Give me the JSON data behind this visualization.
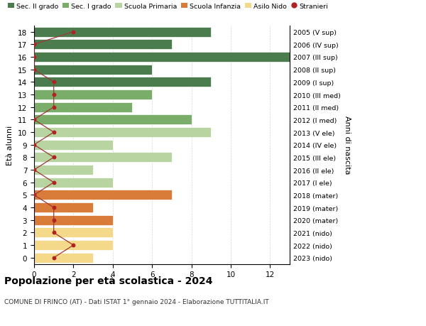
{
  "ages": [
    18,
    17,
    16,
    15,
    14,
    13,
    12,
    11,
    10,
    9,
    8,
    7,
    6,
    5,
    4,
    3,
    2,
    1,
    0
  ],
  "right_labels": [
    "2005 (V sup)",
    "2006 (IV sup)",
    "2007 (III sup)",
    "2008 (II sup)",
    "2009 (I sup)",
    "2010 (III med)",
    "2011 (II med)",
    "2012 (I med)",
    "2013 (V ele)",
    "2014 (IV ele)",
    "2015 (III ele)",
    "2016 (II ele)",
    "2017 (I ele)",
    "2018 (mater)",
    "2019 (mater)",
    "2020 (mater)",
    "2021 (nido)",
    "2022 (nido)",
    "2023 (nido)"
  ],
  "bar_values": [
    9,
    7,
    13,
    6,
    9,
    6,
    5,
    8,
    9,
    4,
    7,
    3,
    4,
    7,
    3,
    4,
    4,
    4,
    3
  ],
  "stranieri": [
    2,
    0,
    0,
    0,
    1,
    1,
    1,
    0,
    1,
    0,
    1,
    0,
    1,
    0,
    1,
    1,
    1,
    2,
    1
  ],
  "bar_colors": [
    "#4a7c4e",
    "#4a7c4e",
    "#4a7c4e",
    "#4a7c4e",
    "#4a7c4e",
    "#7aac6a",
    "#7aac6a",
    "#7aac6a",
    "#b8d4a0",
    "#b8d4a0",
    "#b8d4a0",
    "#b8d4a0",
    "#b8d4a0",
    "#d97c3a",
    "#d97c3a",
    "#d97c3a",
    "#f5d98b",
    "#f5d98b",
    "#f5d98b"
  ],
  "legend_labels": [
    "Sec. II grado",
    "Sec. I grado",
    "Scuola Primaria",
    "Scuola Infanzia",
    "Asilo Nido",
    "Stranieri"
  ],
  "legend_colors": [
    "#4a7c4e",
    "#7aac6a",
    "#b8d4a0",
    "#d97c3a",
    "#f5d98b",
    "#b22222"
  ],
  "ylabel_left": "Età alunni",
  "ylabel_right": "Anni di nascita",
  "title": "Popolazione per età scolastica - 2024",
  "subtitle": "COMUNE DI FRINCO (AT) - Dati ISTAT 1° gennaio 2024 - Elaborazione TUTTITALIA.IT",
  "xlim": [
    0,
    13
  ],
  "xticks": [
    0,
    2,
    4,
    6,
    8,
    10,
    12
  ],
  "stranieri_color": "#b22222",
  "line_color": "#9b3a3a",
  "background_color": "#ffffff"
}
